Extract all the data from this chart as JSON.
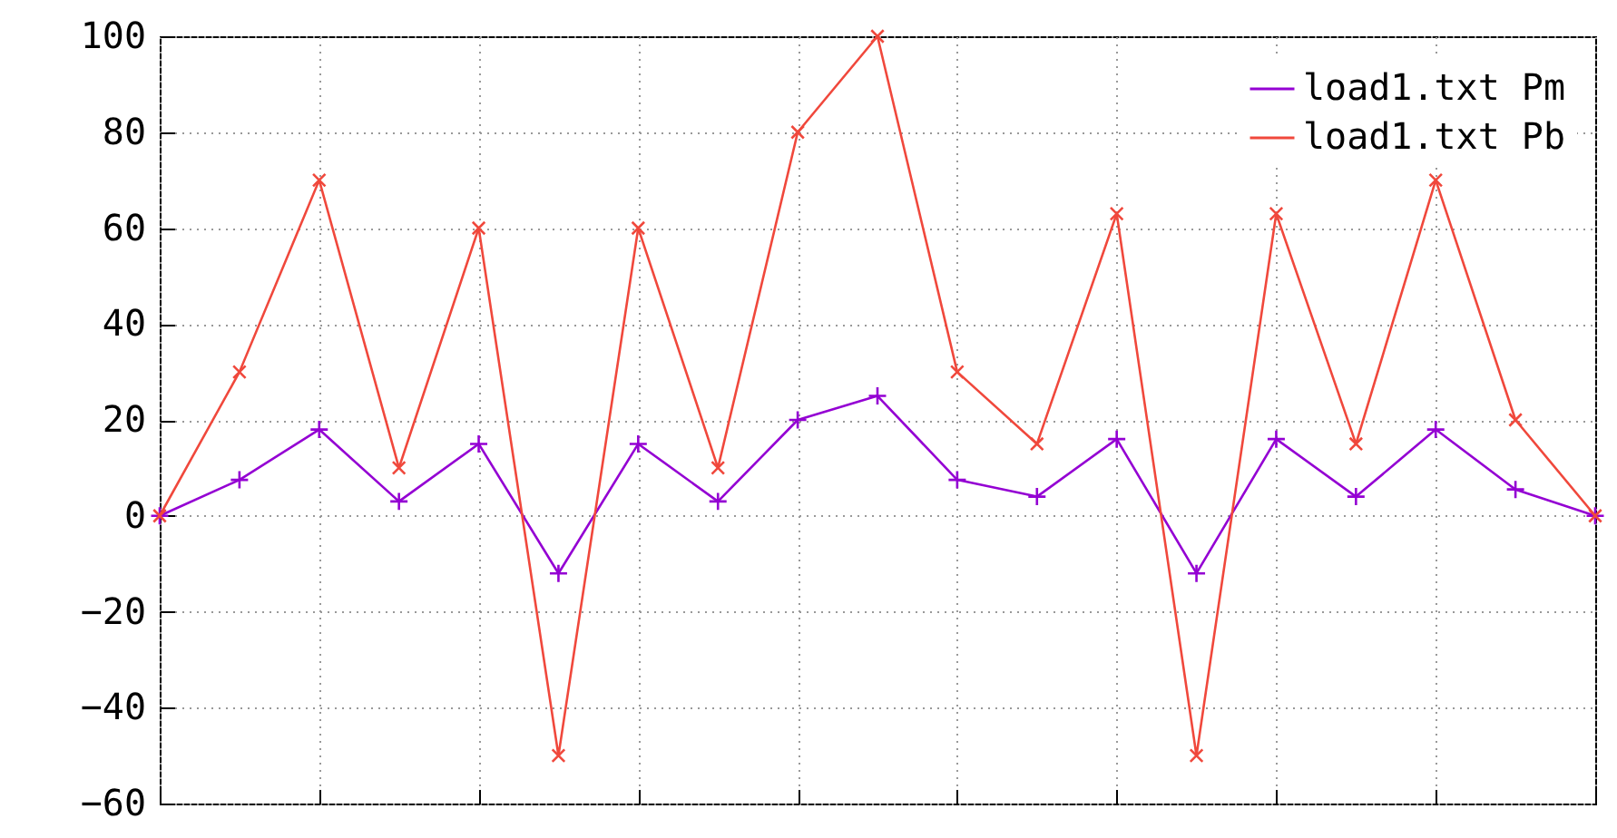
{
  "chart_data": {
    "type": "line",
    "categories": [
      null,
      null,
      null,
      null,
      null,
      null,
      null,
      null,
      null,
      null,
      null,
      null,
      null,
      null,
      null,
      null,
      null,
      null,
      null
    ],
    "series": [
      {
        "name": "load1.txt Pm",
        "color": "#9400d3",
        "values": [
          0,
          7.5,
          18,
          3,
          15,
          -12,
          15,
          3,
          20,
          25,
          7.5,
          4,
          16,
          -12,
          16,
          4,
          18,
          5.5,
          0
        ]
      },
      {
        "name": "load1.txt Pb",
        "color": "#f0483c",
        "values": [
          0,
          30,
          70,
          10,
          60,
          -50,
          60,
          10,
          80,
          100,
          30,
          15,
          63,
          -50,
          63,
          15,
          70,
          20,
          0
        ]
      }
    ],
    "ylim": [
      -60,
      100
    ],
    "yticks": [
      -60,
      -40,
      -20,
      0,
      20,
      40,
      60,
      80,
      100
    ],
    "grid": true,
    "legend": "top right",
    "marker": "cross",
    "tick_labels": "y"
  }
}
